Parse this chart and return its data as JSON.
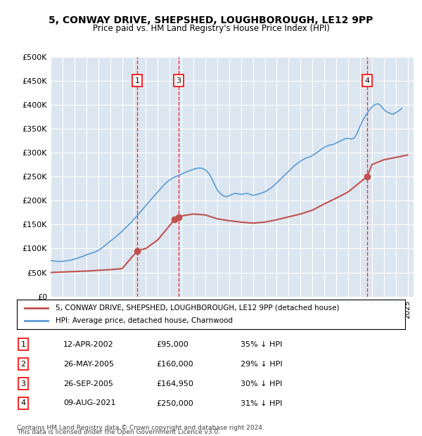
{
  "title": "5, CONWAY DRIVE, SHEPSHED, LOUGHBOROUGH, LE12 9PP",
  "subtitle": "Price paid vs. HM Land Registry's House Price Index (HPI)",
  "legend_property": "5, CONWAY DRIVE, SHEPSHED, LOUGHBOROUGH, LE12 9PP (detached house)",
  "legend_hpi": "HPI: Average price, detached house, Charnwood",
  "footer1": "Contains HM Land Registry data © Crown copyright and database right 2024.",
  "footer2": "This data is licensed under the Open Government Licence v3.0.",
  "ylim": [
    0,
    500000
  ],
  "yticks": [
    0,
    50000,
    100000,
    150000,
    200000,
    250000,
    300000,
    350000,
    400000,
    450000,
    500000
  ],
  "ytick_labels": [
    "£0",
    "£50K",
    "£100K",
    "£150K",
    "£200K",
    "£250K",
    "£300K",
    "£350K",
    "£400K",
    "£450K",
    "£500K"
  ],
  "xlim_start": 1995.0,
  "xlim_end": 2025.5,
  "hpi_color": "#5b9bd5",
  "price_color": "#c0504d",
  "background_color": "#dce6f1",
  "sales": [
    {
      "num": 1,
      "year": 2002.28,
      "price": 95000,
      "label": "12-APR-2002",
      "pct": "35%"
    },
    {
      "num": 2,
      "year": 2005.4,
      "price": 160000,
      "label": "26-MAY-2005",
      "pct": "29%"
    },
    {
      "num": 3,
      "year": 2005.74,
      "price": 164950,
      "label": "26-SEP-2005",
      "pct": "30%"
    },
    {
      "num": 4,
      "year": 2021.6,
      "price": 250000,
      "label": "09-AUG-2021",
      "pct": "31%"
    }
  ],
  "hpi_years": [
    1995.0,
    1995.25,
    1995.5,
    1995.75,
    1996.0,
    1996.25,
    1996.5,
    1996.75,
    1997.0,
    1997.25,
    1997.5,
    1997.75,
    1998.0,
    1998.25,
    1998.5,
    1998.75,
    1999.0,
    1999.25,
    1999.5,
    1999.75,
    2000.0,
    2000.25,
    2000.5,
    2000.75,
    2001.0,
    2001.25,
    2001.5,
    2001.75,
    2002.0,
    2002.25,
    2002.5,
    2002.75,
    2003.0,
    2003.25,
    2003.5,
    2003.75,
    2004.0,
    2004.25,
    2004.5,
    2004.75,
    2005.0,
    2005.25,
    2005.5,
    2005.75,
    2006.0,
    2006.25,
    2006.5,
    2006.75,
    2007.0,
    2007.25,
    2007.5,
    2007.75,
    2008.0,
    2008.25,
    2008.5,
    2008.75,
    2009.0,
    2009.25,
    2009.5,
    2009.75,
    2010.0,
    2010.25,
    2010.5,
    2010.75,
    2011.0,
    2011.25,
    2011.5,
    2011.75,
    2012.0,
    2012.25,
    2012.5,
    2012.75,
    2013.0,
    2013.25,
    2013.5,
    2013.75,
    2014.0,
    2014.25,
    2014.5,
    2014.75,
    2015.0,
    2015.25,
    2015.5,
    2015.75,
    2016.0,
    2016.25,
    2016.5,
    2016.75,
    2017.0,
    2017.25,
    2017.5,
    2017.75,
    2018.0,
    2018.25,
    2018.5,
    2018.75,
    2019.0,
    2019.25,
    2019.5,
    2019.75,
    2020.0,
    2020.25,
    2020.5,
    2020.75,
    2021.0,
    2021.25,
    2021.5,
    2021.75,
    2022.0,
    2022.25,
    2022.5,
    2022.75,
    2023.0,
    2023.25,
    2023.5,
    2023.75,
    2024.0,
    2024.25,
    2024.5
  ],
  "hpi_values": [
    75000,
    74000,
    73500,
    73000,
    73500,
    74000,
    75000,
    76000,
    78000,
    80000,
    82000,
    84000,
    87000,
    89000,
    91000,
    93000,
    96000,
    100000,
    105000,
    110000,
    115000,
    120000,
    125000,
    130000,
    136000,
    142000,
    148000,
    154000,
    161000,
    168000,
    175000,
    182000,
    190000,
    197000,
    204000,
    211000,
    218000,
    225000,
    232000,
    238000,
    243000,
    247000,
    250000,
    252000,
    255000,
    258000,
    261000,
    263000,
    265000,
    267000,
    268000,
    267000,
    264000,
    258000,
    248000,
    235000,
    222000,
    215000,
    210000,
    208000,
    210000,
    213000,
    215000,
    214000,
    213000,
    214000,
    215000,
    213000,
    211000,
    212000,
    214000,
    216000,
    218000,
    222000,
    226000,
    231000,
    237000,
    243000,
    249000,
    255000,
    261000,
    267000,
    273000,
    278000,
    282000,
    286000,
    289000,
    291000,
    294000,
    298000,
    302000,
    307000,
    311000,
    314000,
    316000,
    317000,
    320000,
    323000,
    326000,
    329000,
    330000,
    328000,
    330000,
    340000,
    355000,
    368000,
    378000,
    388000,
    395000,
    400000,
    402000,
    398000,
    390000,
    385000,
    382000,
    380000,
    383000,
    387000,
    392000
  ],
  "price_years": [
    1995.0,
    1996.0,
    1997.0,
    1998.0,
    1999.0,
    2000.0,
    2001.0,
    2002.28,
    2002.3,
    2003.0,
    2004.0,
    2005.4,
    2005.74,
    2006.0,
    2007.0,
    2008.0,
    2009.0,
    2010.0,
    2011.0,
    2012.0,
    2013.0,
    2014.0,
    2015.0,
    2016.0,
    2017.0,
    2018.0,
    2019.0,
    2020.0,
    2021.6,
    2022.0,
    2023.0,
    2024.0,
    2025.0
  ],
  "price_values": [
    50000,
    51000,
    52000,
    53000,
    54500,
    56000,
    58000,
    95000,
    96000,
    100000,
    118000,
    160000,
    164950,
    168000,
    172000,
    170000,
    162000,
    158000,
    155000,
    153000,
    155000,
    160000,
    166000,
    172000,
    180000,
    193000,
    205000,
    218000,
    250000,
    275000,
    285000,
    290000,
    295000
  ]
}
